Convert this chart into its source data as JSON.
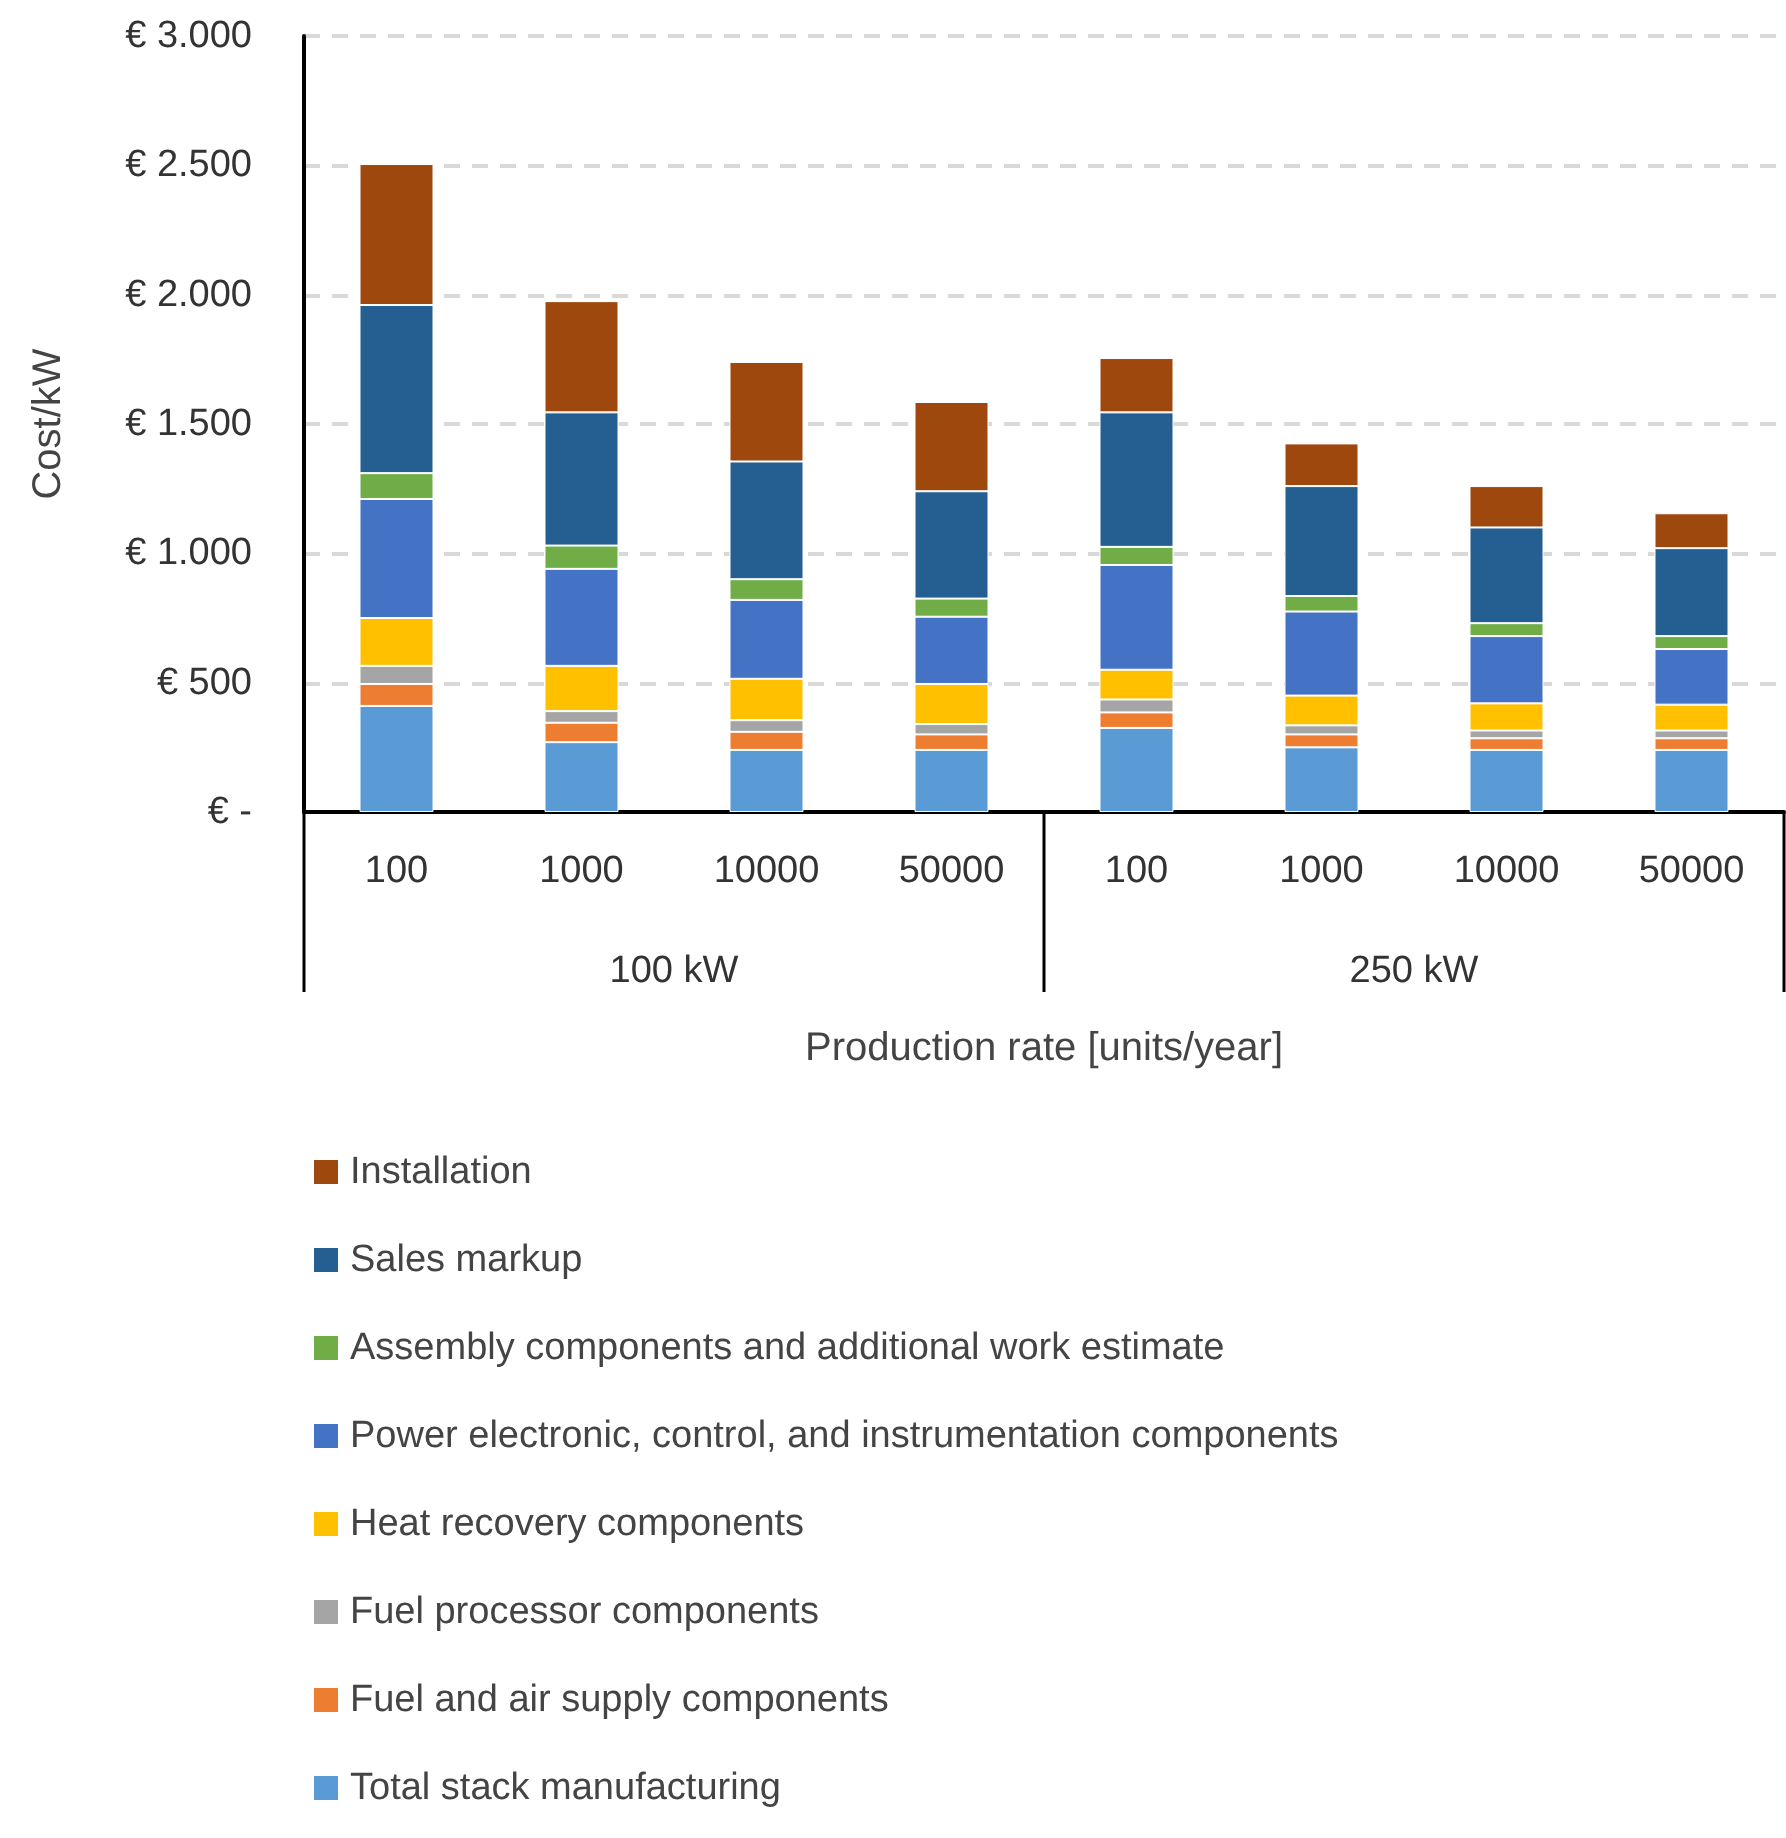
{
  "chart_data": {
    "type": "bar",
    "stacked": true,
    "categories": [
      "100",
      "1000",
      "10000",
      "50000",
      "100",
      "1000",
      "10000",
      "50000"
    ],
    "annotations": [
      "100 kW",
      "250 kW"
    ],
    "xlabel": "Production rate [units/year]",
    "ylabel": "Cost/kW",
    "ylim": [
      0,
      3000
    ],
    "yticks": [
      {
        "value": 0,
        "label": "€ -"
      },
      {
        "value": 500,
        "label": "€ 500"
      },
      {
        "value": 1000,
        "label": "€ 1.000"
      },
      {
        "value": 1500,
        "label": "€ 1.500"
      },
      {
        "value": 2000,
        "label": "€ 2.000"
      },
      {
        "value": 2500,
        "label": "€ 2.500"
      },
      {
        "value": 3000,
        "label": "€ 3.000"
      }
    ],
    "grid": "y",
    "legend": "bottom",
    "series": [
      {
        "name": "Total stack manufacturing",
        "color": "#5b9bd5",
        "values": [
          410,
          270,
          240,
          240,
          325,
          250,
          240,
          240
        ]
      },
      {
        "name": "Fuel and air supply components",
        "color": "#ed7d31",
        "values": [
          85,
          75,
          70,
          60,
          60,
          50,
          45,
          45
        ]
      },
      {
        "name": "Fuel processor components",
        "color": "#a5a5a5",
        "values": [
          70,
          45,
          45,
          40,
          50,
          35,
          30,
          30
        ]
      },
      {
        "name": "Heat recovery components",
        "color": "#ffc000",
        "values": [
          185,
          175,
          160,
          155,
          115,
          115,
          105,
          100
        ]
      },
      {
        "name": "Power electronic, control, and instrumentation components",
        "color": "#4472c4",
        "values": [
          460,
          375,
          305,
          260,
          405,
          325,
          260,
          215
        ]
      },
      {
        "name": "Assembly components and additional work estimate",
        "color": "#70ad47",
        "values": [
          100,
          90,
          80,
          70,
          70,
          60,
          50,
          50
        ]
      },
      {
        "name": "Sales markup",
        "color": "#255e91",
        "values": [
          650,
          515,
          455,
          415,
          520,
          425,
          370,
          340
        ]
      },
      {
        "name": "Installation",
        "color": "#9e480e",
        "values": [
          545,
          430,
          385,
          345,
          210,
          165,
          160,
          135
        ]
      }
    ]
  }
}
